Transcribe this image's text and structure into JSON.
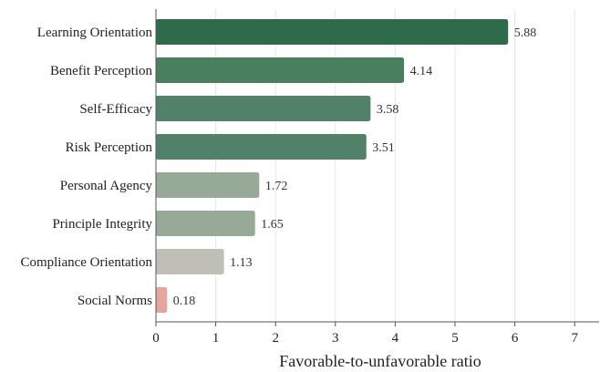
{
  "chart_data": {
    "type": "bar",
    "orientation": "horizontal",
    "xlabel": "Favorable-to-unfavorable ratio",
    "ylabel": "",
    "title": "",
    "xlim": [
      0,
      7.4
    ],
    "xticks": [
      0,
      1,
      2,
      3,
      4,
      5,
      6,
      7
    ],
    "grid": true,
    "categories": [
      "Learning Orientation",
      "Benefit Perception",
      "Self-Efficacy",
      "Risk Perception",
      "Personal Agency",
      "Principle Integrity",
      "Compliance Orientation",
      "Social Norms"
    ],
    "values": [
      5.88,
      4.14,
      3.58,
      3.51,
      1.72,
      1.65,
      1.13,
      0.18
    ],
    "value_labels": [
      "5.88",
      "4.14",
      "3.58",
      "3.51",
      "1.72",
      "1.65",
      "1.13",
      "0.18"
    ],
    "colors": [
      "#2e6b4a",
      "#4a7f5e",
      "#52816a",
      "#52816a",
      "#97aa97",
      "#97aa97",
      "#bfbfb6",
      "#e4a69c"
    ]
  }
}
